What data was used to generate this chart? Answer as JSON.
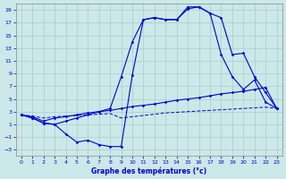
{
  "title": "Graphe des températures (°c)",
  "background_color": "#cce8e8",
  "grid_color": "#aacccc",
  "line_color": "#0000cc",
  "xlim": [
    -0.5,
    23.5
  ],
  "ylim": [
    -4,
    20
  ],
  "xticks": [
    0,
    1,
    2,
    3,
    4,
    5,
    6,
    7,
    8,
    9,
    10,
    11,
    12,
    13,
    14,
    15,
    16,
    17,
    18,
    19,
    20,
    21,
    22,
    23
  ],
  "yticks": [
    -3,
    -1,
    1,
    3,
    5,
    7,
    9,
    11,
    13,
    15,
    17,
    19
  ],
  "line1_x": [
    0,
    1,
    2,
    3,
    4,
    5,
    6,
    7,
    8,
    9,
    10,
    11,
    12,
    13,
    14,
    15,
    16,
    17,
    18,
    19,
    20,
    21,
    22,
    23
  ],
  "line1_y": [
    2.5,
    2.0,
    1.2,
    1.0,
    -0.5,
    -1.8,
    -1.5,
    -2.2,
    -2.5,
    -2.5,
    8.8,
    17.5,
    17.8,
    17.5,
    17.5,
    19.5,
    19.5,
    18.5,
    12.0,
    8.5,
    6.5,
    8.0,
    4.5,
    3.5
  ],
  "line2_x": [
    0,
    1,
    2,
    3,
    4,
    5,
    6,
    7,
    8,
    9,
    10,
    11,
    12,
    13,
    14,
    15,
    16,
    17,
    18,
    19,
    20,
    21,
    22,
    23
  ],
  "line2_y": [
    2.5,
    2.0,
    1.2,
    1.0,
    1.5,
    2.0,
    2.5,
    3.0,
    3.5,
    8.5,
    14.0,
    17.5,
    17.8,
    17.5,
    17.5,
    19.2,
    19.5,
    18.5,
    17.8,
    12.0,
    12.2,
    8.5,
    6.0,
    3.5
  ],
  "line3_x": [
    0,
    1,
    2,
    3,
    4,
    5,
    6,
    7,
    8,
    9,
    10,
    11,
    12,
    13,
    14,
    15,
    16,
    17,
    18,
    19,
    20,
    21,
    22,
    23
  ],
  "line3_y": [
    2.5,
    2.2,
    1.5,
    2.0,
    2.2,
    2.5,
    2.8,
    3.0,
    3.2,
    3.5,
    3.8,
    4.0,
    4.2,
    4.5,
    4.8,
    5.0,
    5.2,
    5.5,
    5.8,
    6.0,
    6.2,
    6.5,
    6.8,
    3.5
  ],
  "line4_x": [
    0,
    1,
    2,
    3,
    4,
    5,
    6,
    7,
    8,
    9,
    10,
    11,
    12,
    13,
    14,
    15,
    16,
    17,
    18,
    19,
    20,
    21,
    22,
    23
  ],
  "line4_y": [
    2.5,
    2.3,
    2.0,
    2.2,
    2.3,
    2.4,
    2.5,
    2.6,
    2.7,
    2.0,
    2.2,
    2.4,
    2.6,
    2.8,
    2.9,
    3.0,
    3.1,
    3.2,
    3.3,
    3.4,
    3.5,
    3.6,
    3.7,
    3.5
  ]
}
